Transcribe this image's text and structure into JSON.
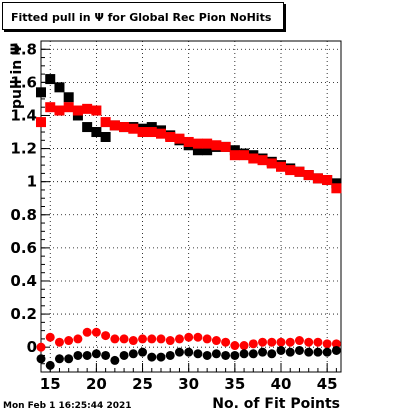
{
  "title": "Fitted pull in  Ψ  for Global Rec Pion NoHits",
  "timestamp": "Mon Feb  1 16:25:44 2021",
  "chart_data": {
    "type": "scatter",
    "title": "Fitted pull in  Ψ  for Global Rec Pion NoHits",
    "xlabel": "No. of Fit Points",
    "ylabel": "pull in  Ψ",
    "xlim": [
      14,
      46.5
    ],
    "ylim": [
      -0.15,
      1.85
    ],
    "xticks": [
      "15",
      "20",
      "25",
      "30",
      "35",
      "40",
      "45"
    ],
    "yticks": [
      "0",
      "0.2",
      "0.4",
      "0.6",
      "0.8",
      "1",
      "1.2",
      "1.4",
      "1.6",
      "1.8"
    ],
    "grid": true,
    "x": [
      14,
      15,
      16,
      17,
      18,
      19,
      20,
      21,
      22,
      23,
      24,
      25,
      26,
      27,
      28,
      29,
      30,
      31,
      32,
      33,
      34,
      35,
      36,
      37,
      38,
      39,
      40,
      41,
      42,
      43,
      44,
      45,
      46
    ],
    "series": [
      {
        "color": "#000000",
        "marker": "square",
        "values": [
          1.54,
          1.62,
          1.57,
          1.51,
          1.4,
          1.33,
          1.3,
          1.27,
          1.34,
          1.33,
          1.33,
          1.32,
          1.33,
          1.31,
          1.28,
          1.25,
          1.22,
          1.19,
          1.19,
          1.21,
          1.21,
          1.19,
          1.17,
          1.16,
          1.14,
          1.12,
          1.1,
          1.08,
          1.06,
          1.04,
          1.02,
          1.01,
          0.99
        ]
      },
      {
        "color": "#ff0000",
        "marker": "square",
        "values": [
          1.36,
          1.45,
          1.43,
          1.45,
          1.43,
          1.44,
          1.43,
          1.36,
          1.34,
          1.33,
          1.32,
          1.3,
          1.3,
          1.29,
          1.27,
          1.26,
          1.24,
          1.23,
          1.23,
          1.22,
          1.21,
          1.16,
          1.16,
          1.14,
          1.13,
          1.11,
          1.09,
          1.07,
          1.06,
          1.04,
          1.02,
          1.01,
          0.96
        ]
      },
      {
        "color": "#ff0000",
        "marker": "circle",
        "values": [
          0.0,
          0.06,
          0.03,
          0.04,
          0.05,
          0.09,
          0.09,
          0.07,
          0.05,
          0.05,
          0.04,
          0.05,
          0.05,
          0.05,
          0.04,
          0.05,
          0.06,
          0.06,
          0.05,
          0.04,
          0.03,
          0.01,
          0.01,
          0.02,
          0.03,
          0.03,
          0.03,
          0.03,
          0.04,
          0.03,
          0.03,
          0.02,
          0.02
        ]
      },
      {
        "color": "#000000",
        "marker": "circle",
        "values": [
          -0.07,
          -0.11,
          -0.07,
          -0.07,
          -0.05,
          -0.05,
          -0.04,
          -0.05,
          -0.08,
          -0.05,
          -0.04,
          -0.03,
          -0.06,
          -0.06,
          -0.05,
          -0.03,
          -0.03,
          -0.04,
          -0.05,
          -0.04,
          -0.05,
          -0.05,
          -0.04,
          -0.04,
          -0.03,
          -0.04,
          -0.02,
          -0.03,
          -0.02,
          -0.03,
          -0.03,
          -0.03,
          -0.02
        ]
      }
    ]
  }
}
